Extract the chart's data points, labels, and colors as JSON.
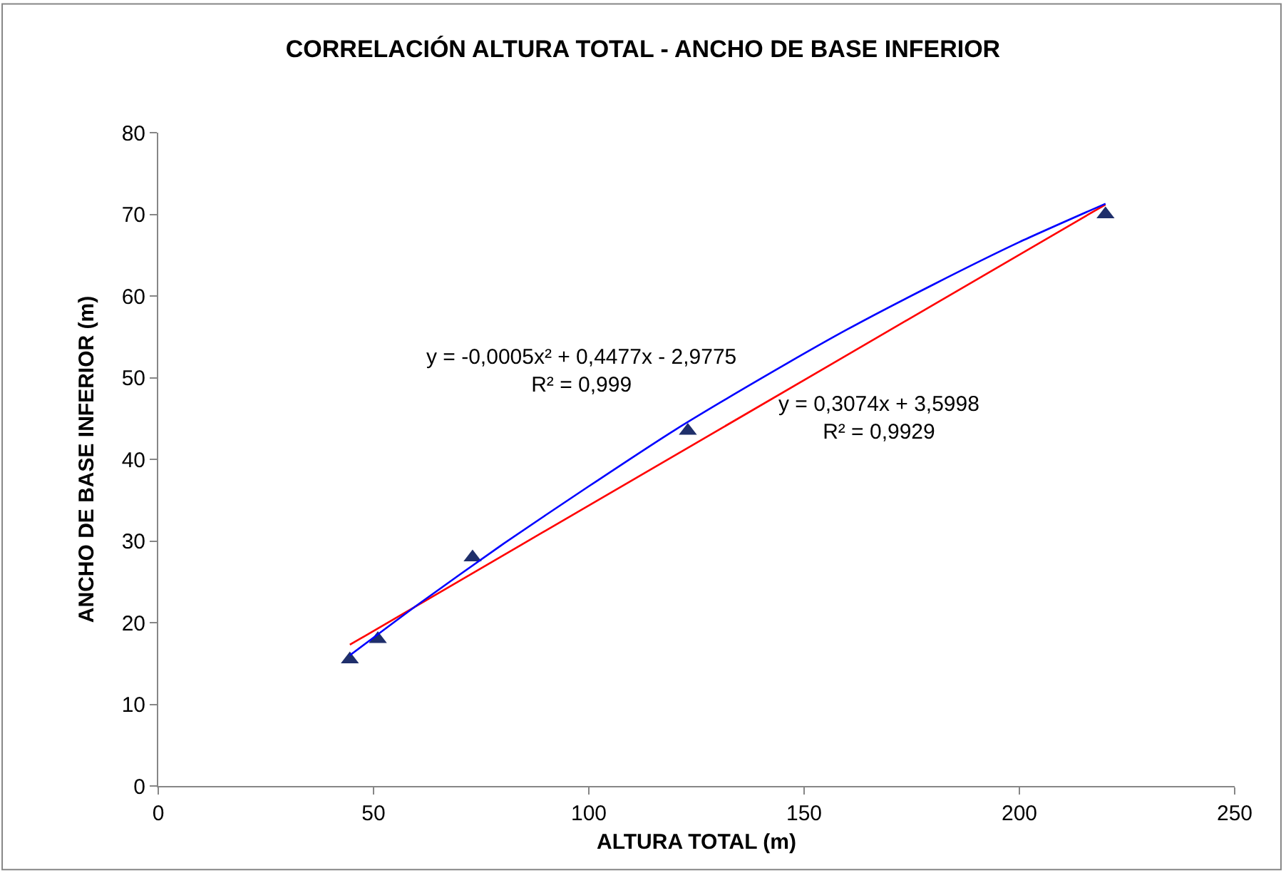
{
  "chart_data": {
    "type": "scatter",
    "title": "CORRELACIÓN ALTURA TOTAL - ANCHO DE BASE INFERIOR",
    "xlabel": "ALTURA TOTAL (m)",
    "ylabel": "ANCHO DE BASE INFERIOR (m)",
    "x": [
      44.5,
      51,
      73,
      123,
      220
    ],
    "series": [
      {
        "color": "#1f2f6b",
        "marker": "triangle",
        "values": [
          15.5,
          18,
          28,
          43.5,
          70
        ]
      },
      {
        "type": "line",
        "color": "#ff0000",
        "x": [
          44.5,
          220
        ],
        "values": [
          17.3,
          71.2
        ]
      },
      {
        "type": "line",
        "color": "#0000ff",
        "x": [
          44.5,
          60,
          80,
          100,
          120,
          140,
          160,
          180,
          200,
          220
        ],
        "values": [
          16.0,
          22.1,
          29.6,
          36.7,
          43.6,
          49.9,
          55.9,
          61.4,
          66.6,
          71.3
        ]
      }
    ],
    "annotations": [
      "y = -0,0005x² + 0,4477x - 2,9775\nR² = 0,999",
      "y = 0,3074x + 3,5998\nR² = 0,9929"
    ],
    "xlim": [
      0,
      250
    ],
    "xticks": [
      0,
      50,
      100,
      150,
      200,
      250
    ],
    "ylim": [
      0,
      80
    ],
    "yticks": [
      0,
      10,
      20,
      30,
      40,
      50,
      60,
      70,
      80
    ]
  }
}
